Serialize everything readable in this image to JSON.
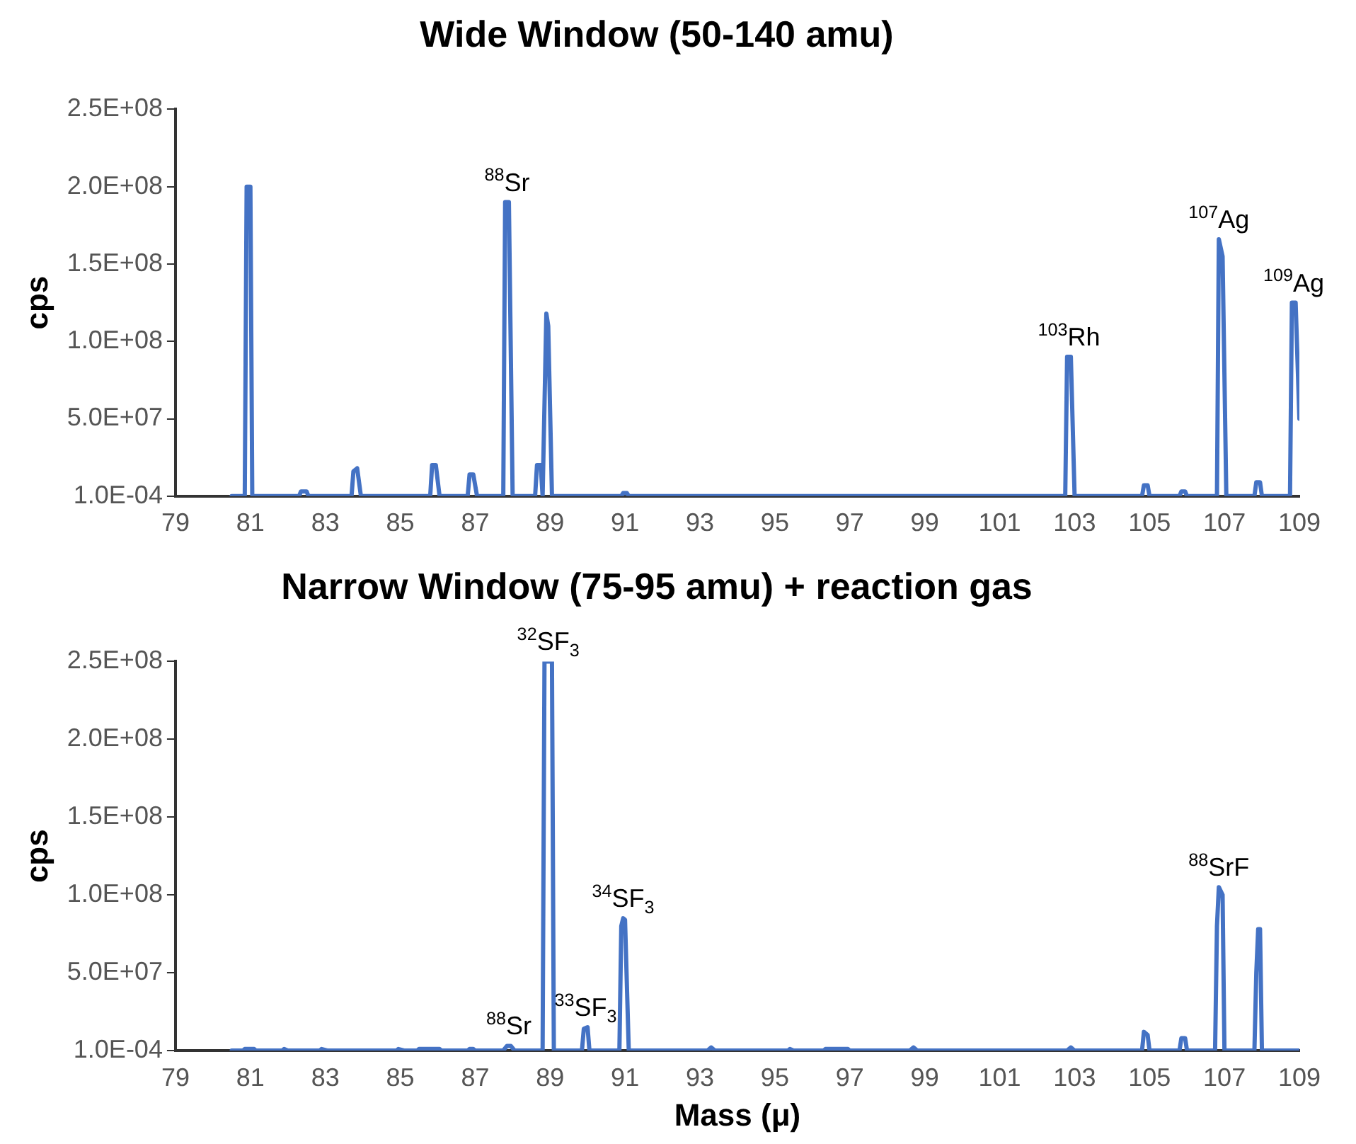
{
  "chart_data": [
    {
      "type": "line",
      "title": "Wide Window (50-140 amu)",
      "ylabel": "cps",
      "legend": false,
      "grid": false,
      "marker": "none",
      "line_style": "solid",
      "xlim": [
        79,
        109
      ],
      "xticks": [
        79,
        81,
        83,
        85,
        87,
        89,
        91,
        93,
        95,
        97,
        99,
        101,
        103,
        105,
        107,
        109
      ],
      "ylim": [
        0.0001,
        250000000
      ],
      "yticks": [
        {
          "value": 0.0001,
          "label": "1.0E-04"
        },
        {
          "value": 50000000,
          "label": "5.0E+07"
        },
        {
          "value": 100000000,
          "label": "1.0E+08"
        },
        {
          "value": 150000000,
          "label": "1.5E+08"
        },
        {
          "value": 200000000,
          "label": "2.0E+08"
        },
        {
          "value": 250000000,
          "label": "2.5E+08"
        }
      ],
      "annotations": [
        {
          "text": "$^{88}$Sr",
          "x": 87.85,
          "y": 190000000
        },
        {
          "text": "$^{103}$Rh",
          "x": 102.85,
          "y": 90000000
        },
        {
          "text": "$^{107}$Ag",
          "x": 106.85,
          "y": 166000000
        },
        {
          "text": "$^{109}$Ag",
          "x": 108.85,
          "y": 125000000
        }
      ],
      "series": [
        {
          "color": "#4472c4",
          "x": [
            80.5,
            80.85,
            80.9,
            81.0,
            81.05,
            82.3,
            82.35,
            82.5,
            82.55,
            83.7,
            83.75,
            83.85,
            83.95,
            85.8,
            85.85,
            85.95,
            86.05,
            86.8,
            86.85,
            86.95,
            87.05,
            87.75,
            87.8,
            87.9,
            88.0,
            88.6,
            88.65,
            88.75,
            88.8,
            88.9,
            88.95,
            89.05,
            90.9,
            90.95,
            91.05,
            91.1,
            102.75,
            102.8,
            102.9,
            103.0,
            104.8,
            104.85,
            104.95,
            105.0,
            105.8,
            105.85,
            105.95,
            106.0,
            106.8,
            106.85,
            106.95,
            107.05,
            107.8,
            107.85,
            107.95,
            108.0,
            108.75,
            108.8,
            108.9,
            109.0
          ],
          "values": [
            0.0001,
            0.0001,
            200000000,
            200000000,
            0.0001,
            0.0001,
            3000000,
            3000000,
            0.0001,
            0.0001,
            16000000,
            18000000,
            0.0001,
            0.0001,
            20000000,
            20000000,
            0.0001,
            0.0001,
            14000000,
            14000000,
            0.0001,
            0.0001,
            190000000,
            190000000,
            0.0001,
            0.0001,
            20000000,
            20000000,
            0.0001,
            118000000,
            110000000,
            0.0001,
            0.0001,
            2000000,
            2000000,
            0.0001,
            0.0001,
            90000000,
            90000000,
            0.0001,
            0.0001,
            7000000,
            7000000,
            0.0001,
            0.0001,
            3000000,
            3000000,
            0.0001,
            0.0001,
            166000000,
            155000000,
            0.0001,
            0.0001,
            9000000,
            9000000,
            0.0001,
            0.0001,
            125000000,
            125000000,
            50000000
          ]
        }
      ]
    },
    {
      "type": "line",
      "title": "Narrow Window (75-95 amu) + reaction gas",
      "xlabel": "Mass (μ)",
      "ylabel": "cps",
      "legend": false,
      "grid": false,
      "marker": "none",
      "line_style": "solid",
      "xlim": [
        79,
        109
      ],
      "xticks": [
        79,
        81,
        83,
        85,
        87,
        89,
        91,
        93,
        95,
        97,
        99,
        101,
        103,
        105,
        107,
        109
      ],
      "ylim": [
        0.0001,
        250000000
      ],
      "yticks": [
        {
          "value": 0.0001,
          "label": "1.0E-04"
        },
        {
          "value": 50000000,
          "label": "5.0E+07"
        },
        {
          "value": 100000000,
          "label": "1.0E+08"
        },
        {
          "value": 150000000,
          "label": "1.5E+08"
        },
        {
          "value": 200000000,
          "label": "2.0E+08"
        },
        {
          "value": 250000000,
          "label": "2.5E+08"
        }
      ],
      "annotations": [
        {
          "text": "$^{88}$Sr",
          "x": 87.9,
          "y": 3000000
        },
        {
          "text": "$^{32}$SF$_{3}$",
          "x": 88.95,
          "y": 250000000
        },
        {
          "text": "$^{33}$SF$_{3}$",
          "x": 89.95,
          "y": 15000000
        },
        {
          "text": "$^{34}$SF$_{3}$",
          "x": 90.95,
          "y": 85000000
        },
        {
          "text": "$^{88}$SrF",
          "x": 106.85,
          "y": 105000000
        }
      ],
      "series": [
        {
          "color": "#4472c4",
          "x": [
            80.5,
            80.8,
            80.85,
            81.1,
            81.15,
            81.85,
            81.9,
            82.0,
            82.85,
            82.9,
            83.05,
            84.9,
            84.95,
            85.1,
            85.45,
            85.5,
            86.05,
            86.1,
            86.8,
            86.85,
            86.95,
            87.0,
            87.75,
            87.85,
            87.95,
            88.05,
            88.8,
            88.85,
            89.05,
            89.1,
            89.85,
            89.9,
            90.0,
            90.05,
            90.85,
            90.9,
            90.95,
            91.0,
            91.1,
            93.2,
            93.3,
            93.4,
            95.35,
            95.4,
            95.5,
            96.3,
            96.35,
            96.95,
            97.0,
            98.6,
            98.7,
            98.8,
            102.8,
            102.9,
            103.0,
            104.8,
            104.85,
            104.95,
            105.0,
            105.8,
            105.85,
            105.95,
            106.0,
            106.75,
            106.8,
            106.85,
            106.95,
            107.0,
            107.8,
            107.85,
            107.9,
            107.95,
            108.0,
            109.0
          ],
          "values": [
            0.0001,
            0.0001,
            1000000,
            1000000,
            0.0001,
            0.0001,
            1000000,
            0.0001,
            0.0001,
            1000000,
            0.0001,
            0.0001,
            1000000,
            0.0001,
            0.0001,
            1000000,
            1000000,
            0.0001,
            0.0001,
            1000000,
            1000000,
            0.0001,
            0.0001,
            3000000,
            3000000,
            0.0001,
            0.0001,
            250000000,
            250000000,
            0.0001,
            0.0001,
            14000000,
            15000000,
            0.0001,
            0.0001,
            80000000,
            85000000,
            84000000,
            0.0001,
            0.0001,
            2000000,
            0.0001,
            0.0001,
            1000000,
            0.0001,
            0.0001,
            1000000,
            1000000,
            0.0001,
            0.0001,
            2000000,
            0.0001,
            0.0001,
            2000000,
            0.0001,
            0.0001,
            12000000,
            10000000,
            0.0001,
            0.0001,
            8000000,
            8000000,
            0.0001,
            0.0001,
            80000000,
            105000000,
            100000000,
            0.0001,
            0.0001,
            50000000,
            78000000,
            78000000,
            0.0001,
            0.0001
          ]
        }
      ]
    }
  ]
}
